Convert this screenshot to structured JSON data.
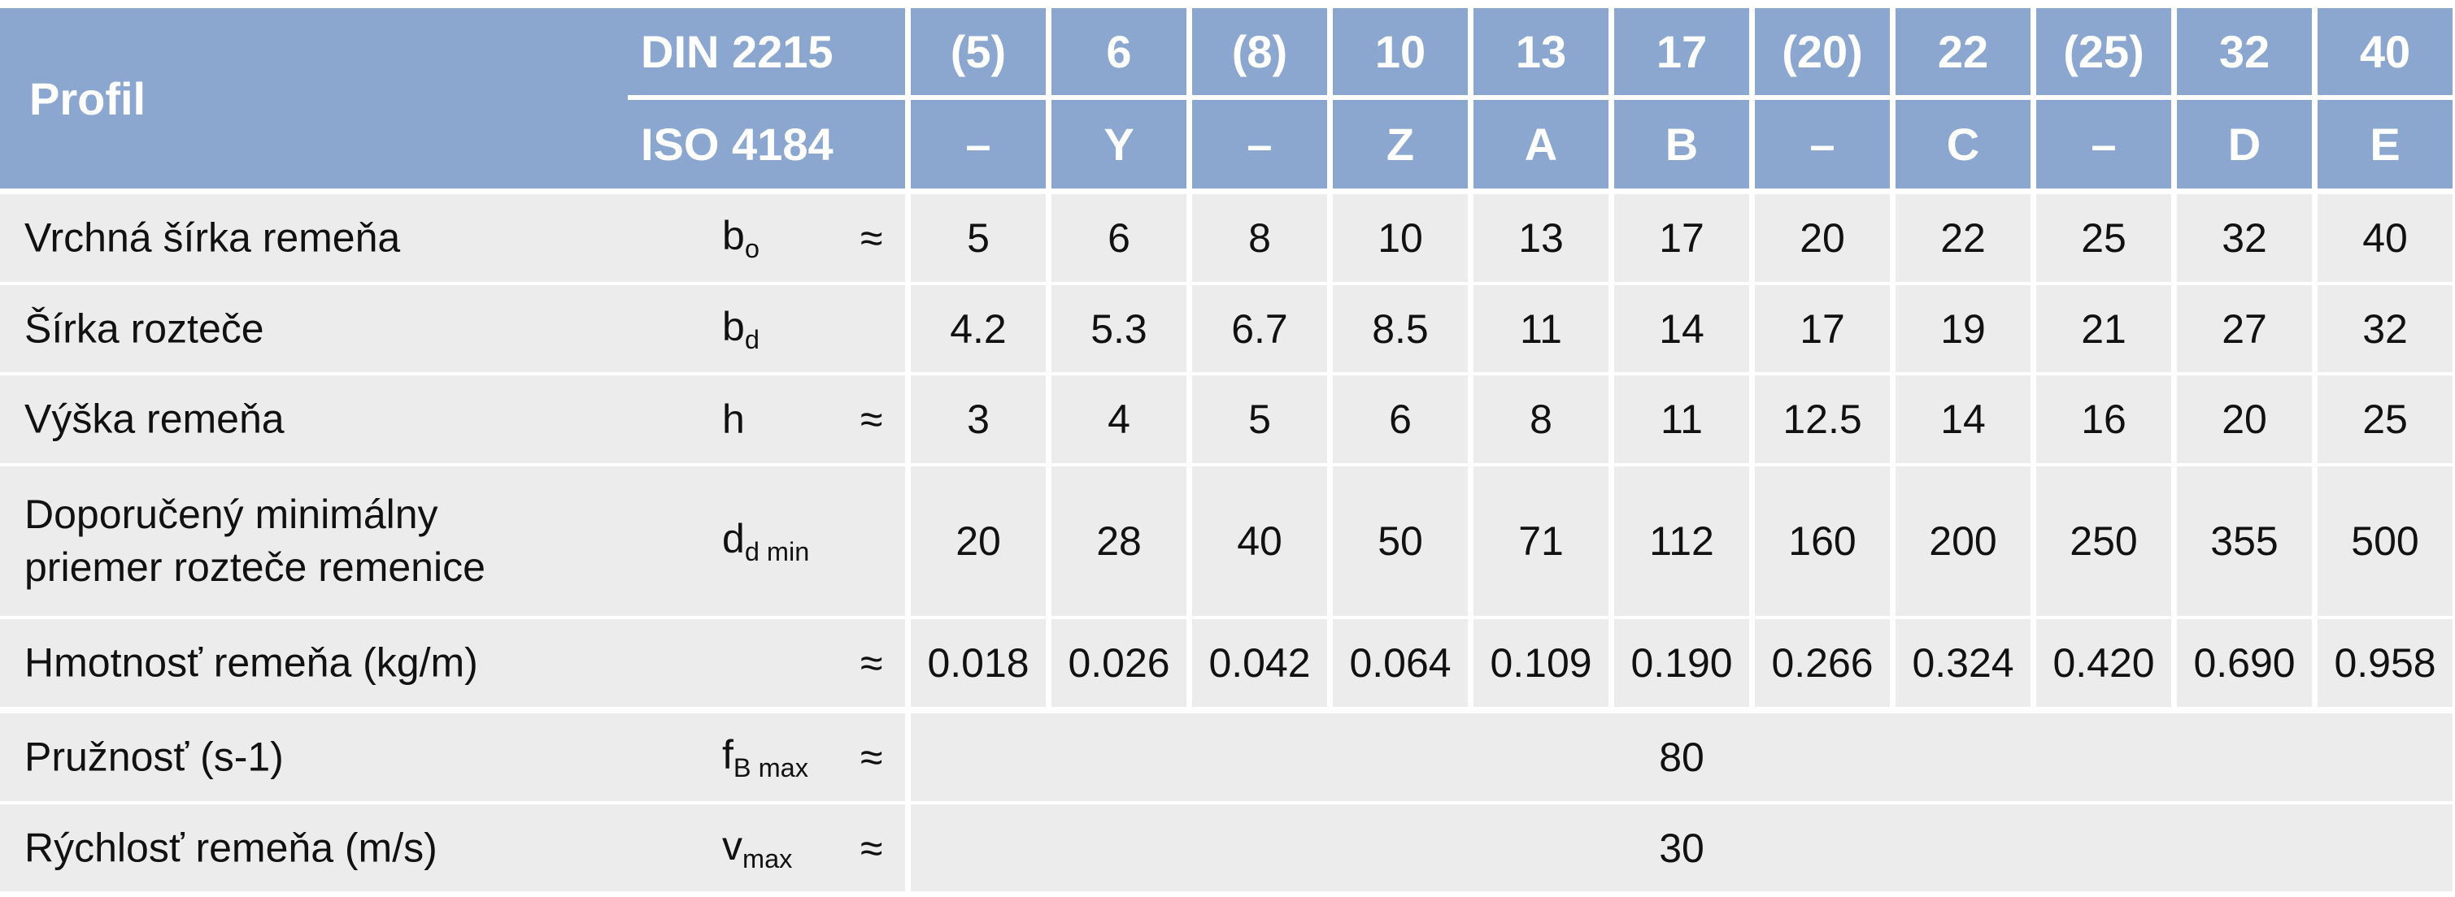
{
  "header": {
    "title": "Profil",
    "standards": [
      "DIN 2215",
      "ISO 4184"
    ],
    "din": [
      "(5)",
      "6",
      "(8)",
      "10",
      "13",
      "17",
      "(20)",
      "22",
      "(25)",
      "32",
      "40"
    ],
    "iso": [
      "–",
      "Y",
      "–",
      "Z",
      "A",
      "B",
      "–",
      "C",
      "–",
      "D",
      "E"
    ]
  },
  "rows": [
    {
      "label": [
        "Vrchná šírka remeňa"
      ],
      "symbol": "b",
      "subscript": "o",
      "approx": "≈",
      "values": [
        "5",
        "6",
        "8",
        "10",
        "13",
        "17",
        "20",
        "22",
        "25",
        "32",
        "40"
      ]
    },
    {
      "label": [
        "Šírka rozteče"
      ],
      "symbol": "b",
      "subscript": "d",
      "values": [
        "4.2",
        "5.3",
        "6.7",
        "8.5",
        "11",
        "14",
        "17",
        "19",
        "21",
        "27",
        "32"
      ]
    },
    {
      "label": [
        "Výška remeňa"
      ],
      "symbol": "h",
      "approx": "≈",
      "values": [
        "3",
        "4",
        "5",
        "6",
        "8",
        "11",
        "12.5",
        "14",
        "16",
        "20",
        "25"
      ]
    },
    {
      "label": [
        "Doporučený minimálny",
        "priemer rozteče remenice"
      ],
      "symbol": "d",
      "subscript": "d min",
      "values": [
        "20",
        "28",
        "40",
        "50",
        "71",
        "112",
        "160",
        "200",
        "250",
        "355",
        "500"
      ]
    },
    {
      "label": [
        "Hmotnosť remeňa (kg/m)"
      ],
      "approx": "≈",
      "values": [
        "0.018",
        "0.026",
        "0.042",
        "0.064",
        "0.109",
        "0.190",
        "0.266",
        "0.324",
        "0.420",
        "0.690",
        "0.958"
      ]
    },
    {
      "label": [
        "Pružnosť (s-1)"
      ],
      "symbol": "f",
      "subscript": "B max",
      "approx": "≈",
      "value": "80"
    },
    {
      "label": [
        "Rýchlosť remeňa (m/s)"
      ],
      "symbol": "v",
      "subscript": "max",
      "approx": "≈",
      "value": "30"
    }
  ]
}
